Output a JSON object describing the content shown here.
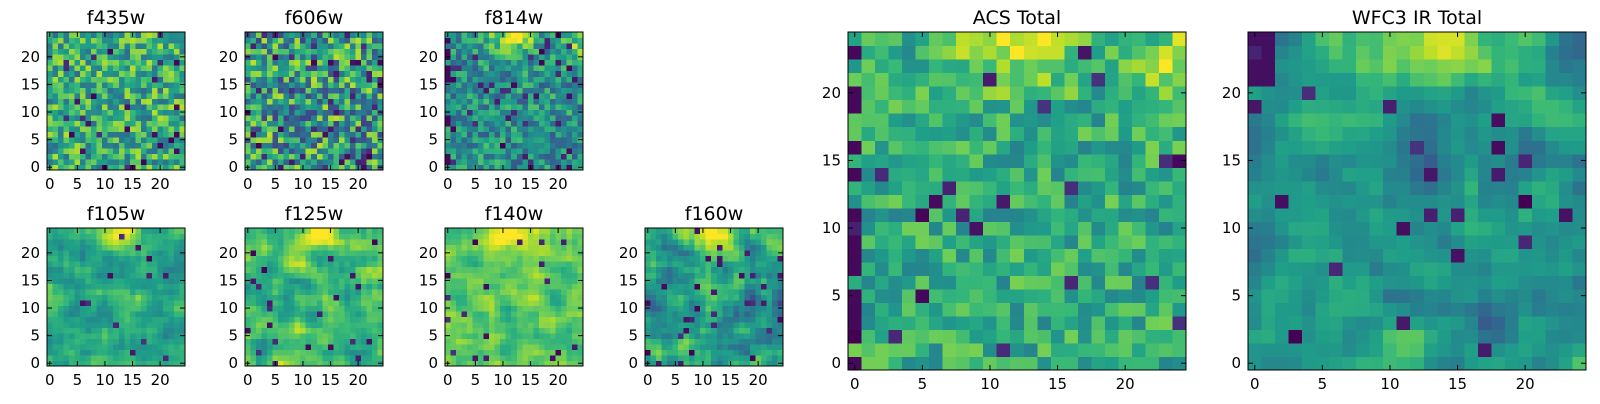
{
  "colors": {
    "colormap": "viridis",
    "viridis_stops": [
      "#440154",
      "#482878",
      "#3e4989",
      "#31688e",
      "#26828e",
      "#1f9e89",
      "#35b779",
      "#6ece58",
      "#b5de2b",
      "#fde725"
    ],
    "frame": "#000000",
    "background": "#ffffff"
  },
  "chart_data": [
    {
      "type": "heatmap",
      "title": "f435w",
      "grid_size": [
        25,
        25
      ],
      "xlim": [
        -0.5,
        24.5
      ],
      "ylim": [
        -0.5,
        24.5
      ],
      "xticks": [
        0,
        5,
        10,
        15,
        20
      ],
      "yticks": [
        0,
        5,
        10,
        15,
        20
      ],
      "value_range": [
        0,
        1
      ],
      "pattern": "uniform noise, mostly green-yellow, scattered dark pixels",
      "values": [],
      "grid": false
    },
    {
      "type": "heatmap",
      "title": "f606w",
      "grid_size": [
        25,
        25
      ],
      "xlim": [
        -0.5,
        24.5
      ],
      "ylim": [
        -0.5,
        24.5
      ],
      "xticks": [
        0,
        5,
        10,
        15,
        20
      ],
      "yticks": [
        0,
        5,
        10,
        15,
        20
      ],
      "value_range": [
        0,
        1
      ],
      "pattern": "uniform noise, mixed teal-yellow, scattered dark pixels",
      "values": [],
      "grid": false
    },
    {
      "type": "heatmap",
      "title": "f814w",
      "grid_size": [
        25,
        25
      ],
      "xlim": [
        -0.5,
        24.5
      ],
      "ylim": [
        -0.5,
        24.5
      ],
      "xticks": [
        0,
        5,
        10,
        15,
        20
      ],
      "yticks": [
        0,
        5,
        10,
        15,
        20
      ],
      "value_range": [
        0,
        1
      ],
      "pattern": "teal-green noise, bright top center and top right, dark left column",
      "values": [],
      "grid": false
    },
    {
      "type": "heatmap",
      "title": "f105w",
      "grid_size": [
        25,
        25
      ],
      "xlim": [
        -0.5,
        24.5
      ],
      "ylim": [
        -0.5,
        24.5
      ],
      "xticks": [
        0,
        5,
        10,
        15,
        20
      ],
      "yticks": [
        0,
        5,
        10,
        15,
        20
      ],
      "value_range": [
        0,
        1
      ],
      "pattern": "smooth green field, bright yellow top center, few dark spots",
      "values": [],
      "grid": false
    },
    {
      "type": "heatmap",
      "title": "f125w",
      "grid_size": [
        25,
        25
      ],
      "xlim": [
        -0.5,
        24.5
      ],
      "ylim": [
        -0.5,
        24.5
      ],
      "xticks": [
        0,
        5,
        10,
        15,
        20
      ],
      "yticks": [
        0,
        5,
        10,
        15,
        20
      ],
      "value_range": [
        0,
        1
      ],
      "pattern": "smooth green-yellow field, bright top center, dark blobs",
      "values": [],
      "grid": false
    },
    {
      "type": "heatmap",
      "title": "f140w",
      "grid_size": [
        25,
        25
      ],
      "xlim": [
        -0.5,
        24.5
      ],
      "ylim": [
        -0.5,
        24.5
      ],
      "xticks": [
        0,
        5,
        10,
        15,
        20
      ],
      "yticks": [
        0,
        5,
        10,
        15,
        20
      ],
      "value_range": [
        0,
        1
      ],
      "pattern": "bright yellow-green field, yellow top center, few dark spots",
      "values": [],
      "grid": false
    },
    {
      "type": "heatmap",
      "title": "f160w",
      "grid_size": [
        25,
        25
      ],
      "xlim": [
        -0.5,
        24.5
      ],
      "ylim": [
        -0.5,
        24.5
      ],
      "xticks": [
        0,
        5,
        10,
        15,
        20
      ],
      "yticks": [
        0,
        5,
        10,
        15,
        20
      ],
      "value_range": [
        0,
        1
      ],
      "pattern": "teal-green field, bright top center, dark blobs on right",
      "values": [],
      "grid": false
    },
    {
      "type": "heatmap",
      "title": "ACS Total",
      "grid_size": [
        25,
        25
      ],
      "xlim": [
        -0.5,
        24.5
      ],
      "ylim": [
        -0.5,
        24.5
      ],
      "xticks": [
        0,
        5,
        10,
        15,
        20
      ],
      "yticks": [
        0,
        5,
        10,
        15,
        20
      ],
      "value_range": [
        0,
        1
      ],
      "pattern": "green field, bright yellow top center and top right, dark left column pixels",
      "values": [],
      "grid": false
    },
    {
      "type": "heatmap",
      "title": "WFC3 IR Total",
      "grid_size": [
        25,
        25
      ],
      "xlim": [
        -0.5,
        24.5
      ],
      "ylim": [
        -0.5,
        24.5
      ],
      "xticks": [
        0,
        5,
        10,
        15,
        20
      ],
      "yticks": [
        0,
        5,
        10,
        15,
        20
      ],
      "value_range": [
        0,
        1
      ],
      "pattern": "teal-green field, bright yellow top center, dark top-left corner and dark spots right",
      "values": [],
      "grid": false
    }
  ]
}
